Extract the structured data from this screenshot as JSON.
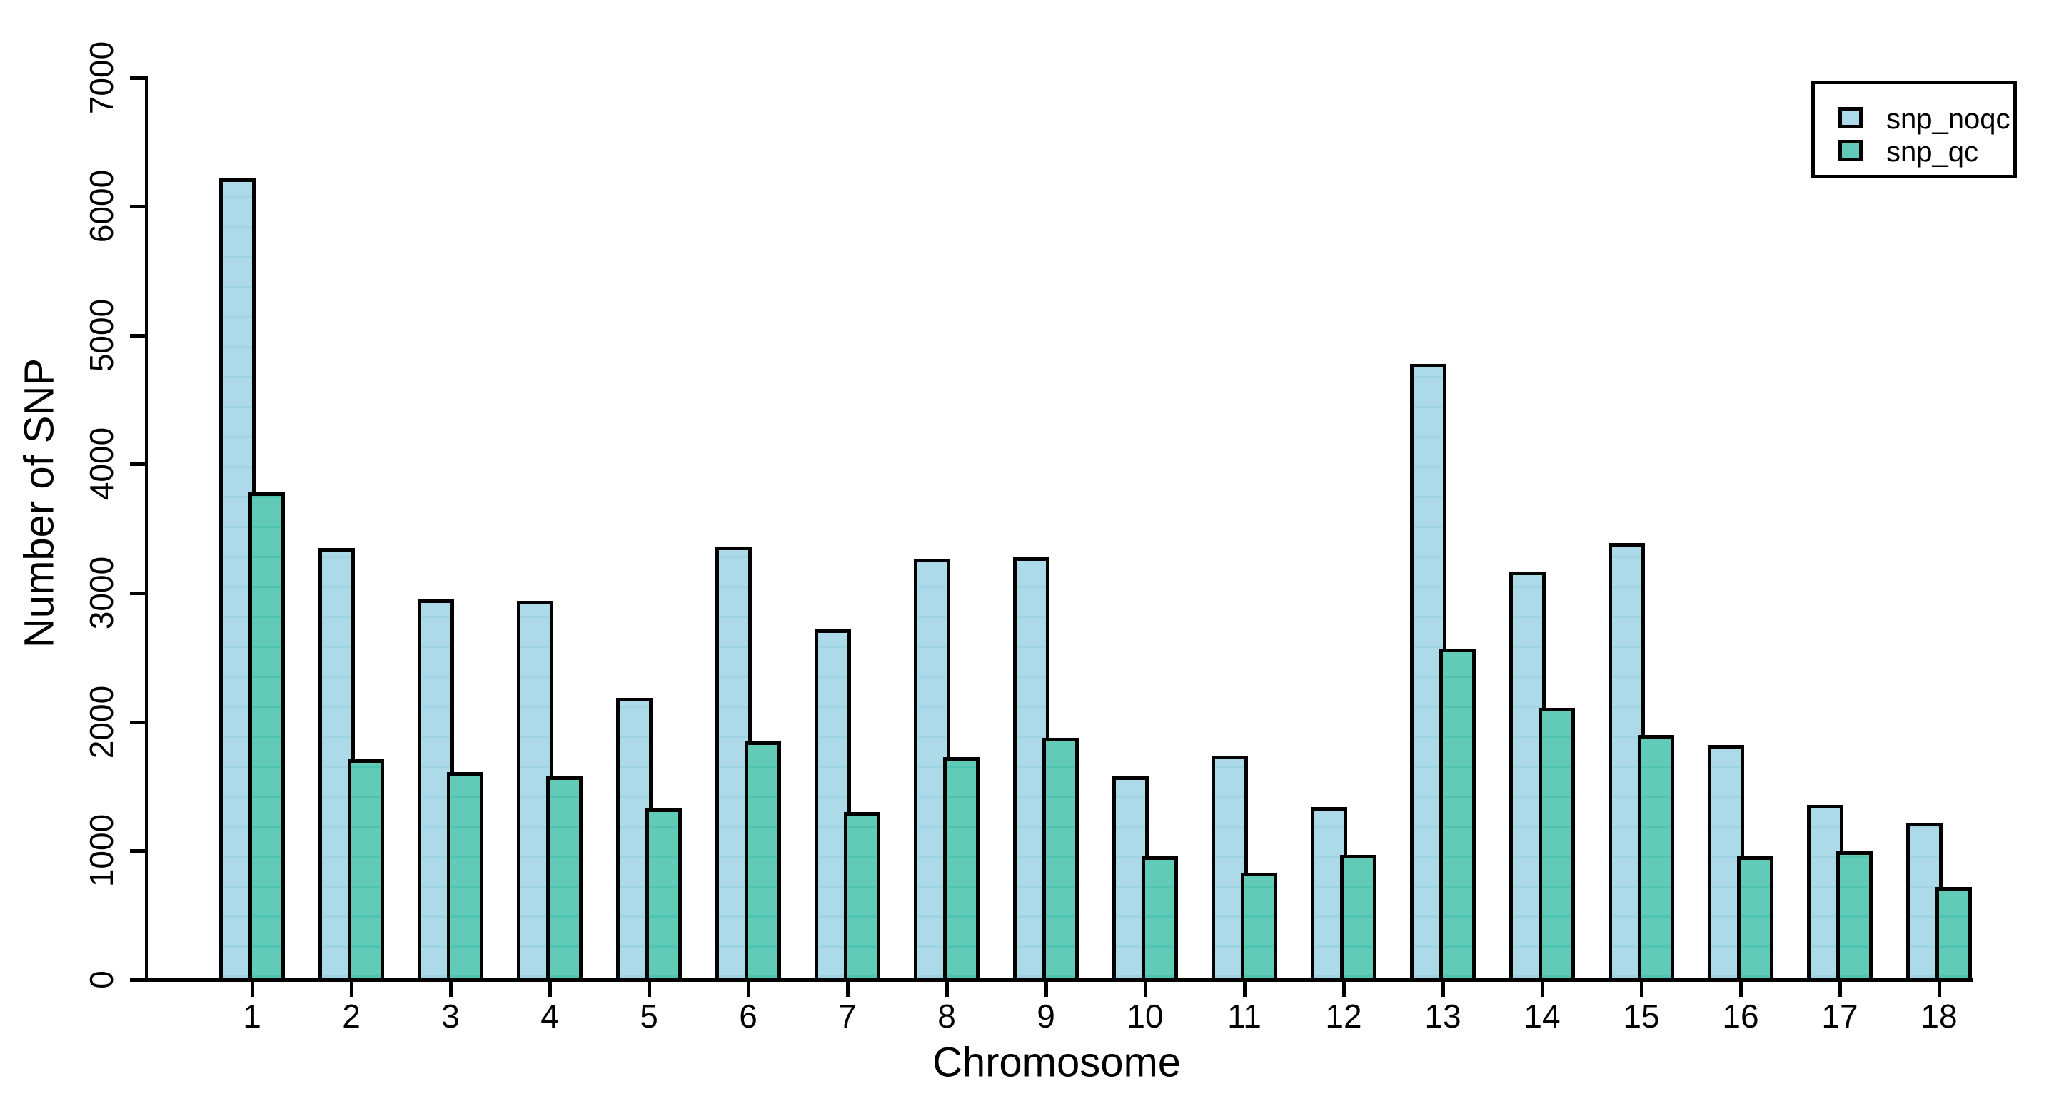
{
  "chart_data": {
    "type": "bar",
    "title": "",
    "xlabel": "Chromosome",
    "ylabel": "Number of SNP",
    "categories": [
      "1",
      "2",
      "3",
      "4",
      "5",
      "6",
      "7",
      "8",
      "9",
      "10",
      "11",
      "12",
      "13",
      "14",
      "15",
      "16",
      "17",
      "18"
    ],
    "series": [
      {
        "name": "snp_noqc",
        "color": "#ACDAE8",
        "stripe_color": "#9DD3E2",
        "values": [
          6230,
          3360,
          2960,
          2950,
          2200,
          3370,
          2730,
          3280,
          3290,
          1590,
          1750,
          1350,
          4790,
          3180,
          3400,
          1830,
          1370,
          1230
        ]
      },
      {
        "name": "snp_qc",
        "color": "#62CBB8",
        "stripe_color": "#4EC4B1",
        "values": [
          3790,
          1720,
          1620,
          1590,
          1340,
          1860,
          1310,
          1740,
          1890,
          970,
          840,
          980,
          2580,
          2120,
          1910,
          970,
          1010,
          730
        ]
      }
    ],
    "ylim": [
      0,
      7000
    ],
    "yticks": [
      0,
      1000,
      2000,
      3000,
      4000,
      5000,
      6000,
      7000
    ],
    "grid": false,
    "legend_position": "top-right",
    "bar_border_color": "#000000",
    "axis_color": "#000000"
  }
}
